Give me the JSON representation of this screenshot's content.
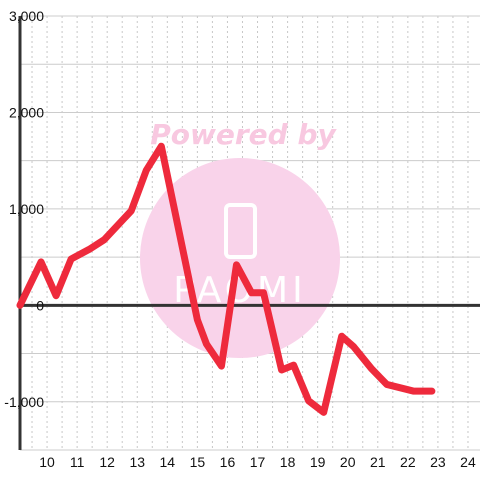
{
  "chart_data": {
    "type": "line",
    "title": "",
    "xlabel": "",
    "ylabel": "",
    "xlim": [
      9.1,
      24.4
    ],
    "ylim": [
      -1500,
      3000
    ],
    "x_ticks": [
      10,
      11,
      12,
      13,
      14,
      15,
      16,
      17,
      18,
      19,
      20,
      21,
      22,
      23,
      24
    ],
    "x_tick_labels": [
      "10",
      "11",
      "12",
      "13",
      "14",
      "15",
      "16",
      "17",
      "18",
      "19",
      "20",
      "21",
      "22",
      "23",
      "24"
    ],
    "y_ticks": [
      -1000,
      0,
      1000,
      2000,
      3000
    ],
    "y_tick_labels": [
      "-1,000",
      "0",
      "1,000",
      "2,000",
      "3,000"
    ],
    "grid": {
      "y_major": true,
      "x_minor_dotted": true
    },
    "series": [
      {
        "color": "#ee2a3c",
        "x": [
          9.1,
          9.8,
          10.3,
          10.8,
          11.4,
          11.9,
          12.8,
          13.3,
          13.8,
          14.2,
          14.6,
          15.0,
          15.3,
          15.8,
          16.3,
          16.8,
          17.2,
          17.8,
          18.2,
          18.7,
          19.2,
          19.8,
          20.2,
          20.8,
          21.3,
          22.2,
          22.8
        ],
        "y": [
          0,
          450,
          100,
          480,
          580,
          680,
          980,
          1400,
          1650,
          1050,
          450,
          -150,
          -400,
          -630,
          420,
          130,
          130,
          -670,
          -620,
          -990,
          -1110,
          -320,
          -430,
          -660,
          -820,
          -890,
          -890
        ]
      }
    ]
  },
  "watermark": {
    "text": "Powered by",
    "brand": "PAOMI",
    "color": "#f9d3ea"
  }
}
